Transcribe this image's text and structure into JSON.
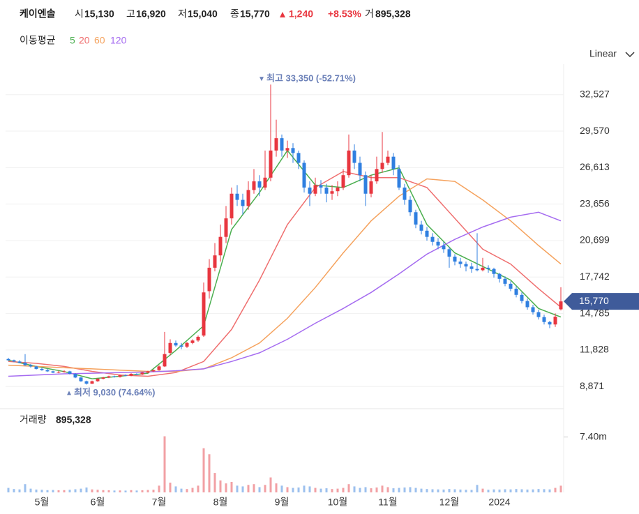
{
  "header": {
    "name": "케이엔솔",
    "open_label": "시",
    "open": "15,130",
    "high_label": "고",
    "high": "16,920",
    "low_label": "저",
    "low": "15,040",
    "close_label": "종",
    "close": "15,770",
    "change": "1,240",
    "change_pct": "+8.53%",
    "volume_label": "거",
    "volume": "895,328"
  },
  "scale_mode": "Linear",
  "chart_data": {
    "type": "candlestick",
    "legend_title": "이동평균",
    "up_color": "#e8363f",
    "down_color": "#2f7fe0",
    "categories": [
      null,
      null,
      null,
      null,
      null,
      null,
      "5월",
      null,
      null,
      null,
      null,
      null,
      null,
      null,
      null,
      null,
      "6월",
      null,
      null,
      null,
      null,
      null,
      null,
      null,
      null,
      null,
      null,
      "7월",
      null,
      null,
      null,
      null,
      null,
      null,
      null,
      null,
      null,
      null,
      "8월",
      null,
      null,
      null,
      null,
      null,
      null,
      null,
      null,
      null,
      null,
      "9월",
      null,
      null,
      null,
      null,
      null,
      null,
      null,
      null,
      null,
      "10월",
      null,
      null,
      null,
      null,
      null,
      null,
      null,
      null,
      "11월",
      null,
      null,
      null,
      null,
      null,
      null,
      null,
      null,
      null,
      null,
      "12월",
      null,
      null,
      null,
      null,
      null,
      null,
      null,
      null,
      "2024",
      null,
      null,
      null,
      null,
      null,
      null,
      null,
      null,
      null,
      null,
      null
    ],
    "open": [
      11100,
      11000,
      10900,
      10800,
      10600,
      10500,
      10300,
      10200,
      10100,
      10000,
      10050,
      10100,
      9900,
      9600,
      9300,
      9100,
      9300,
      9500,
      9600,
      9700,
      9650,
      9800,
      9750,
      9900,
      9850,
      10000,
      10100,
      10200,
      10500,
      11600,
      12400,
      12200,
      12100,
      12400,
      12600,
      13000,
      16600,
      18500,
      19500,
      21000,
      22500,
      24500,
      24000,
      23500,
      24800,
      25500,
      25000,
      25800,
      28000,
      29000,
      28000,
      28200,
      27800,
      27000,
      25000,
      24500,
      25200,
      25000,
      24500,
      24700,
      25000,
      26000,
      28000,
      27000,
      26000,
      24500,
      25500,
      26500,
      27000,
      27500,
      26500,
      25000,
      24000,
      23000,
      22000,
      21500,
      21000,
      20600,
      20300,
      20000,
      19400,
      19000,
      18800,
      18600,
      18400,
      18300,
      18500,
      18400,
      18000,
      17600,
      17200,
      16800,
      16300,
      15800,
      15300,
      14900,
      14500,
      14100,
      13900,
      15130
    ],
    "high": [
      11200,
      11050,
      11000,
      11500,
      10700,
      10550,
      10400,
      10300,
      10150,
      10150,
      10200,
      10150,
      9950,
      9650,
      9350,
      9350,
      9550,
      9650,
      9750,
      9750,
      9850,
      9850,
      9950,
      9950,
      10050,
      10150,
      10250,
      10600,
      13300,
      12700,
      12600,
      12400,
      12500,
      12700,
      13000,
      17300,
      19200,
      20500,
      22000,
      23500,
      25000,
      25200,
      24500,
      25500,
      26500,
      26000,
      28000,
      33350,
      30500,
      29300,
      28800,
      28600,
      28000,
      27200,
      25500,
      25800,
      25600,
      25300,
      25200,
      25500,
      26500,
      29300,
      28500,
      27500,
      26300,
      26000,
      27500,
      29500,
      28000,
      27800,
      26800,
      25300,
      24300,
      23200,
      22300,
      21800,
      21300,
      20900,
      20600,
      20200,
      19600,
      19300,
      19000,
      18900,
      21300,
      19300,
      18700,
      18500,
      18100,
      17800,
      17400,
      17000,
      16500,
      16000,
      15500,
      15100,
      14700,
      14200,
      14800,
      16920
    ],
    "low": [
      10950,
      10850,
      10750,
      10550,
      10400,
      10250,
      10150,
      10050,
      9950,
      9950,
      10000,
      9850,
      9550,
      9250,
      9030,
      9080,
      9250,
      9450,
      9550,
      9600,
      9600,
      9700,
      9700,
      9800,
      9800,
      9950,
      10050,
      10150,
      10450,
      11400,
      12100,
      11900,
      12000,
      12300,
      12500,
      12900,
      16000,
      18200,
      19000,
      20500,
      22000,
      23500,
      22800,
      23200,
      24500,
      24300,
      24800,
      25500,
      27500,
      27500,
      27400,
      27000,
      26500,
      24600,
      23500,
      24300,
      24500,
      23800,
      24000,
      24300,
      24800,
      25800,
      26500,
      25500,
      23500,
      24200,
      25300,
      26200,
      26800,
      26000,
      24800,
      23600,
      22700,
      21700,
      21200,
      20700,
      20300,
      20000,
      19700,
      18500,
      18700,
      18500,
      18200,
      18100,
      18200,
      18200,
      18100,
      17700,
      17300,
      17000,
      16600,
      16100,
      15600,
      15100,
      14700,
      14300,
      13900,
      13600,
      13700,
      15040
    ],
    "close": [
      11000,
      10900,
      10800,
      10600,
      10500,
      10300,
      10200,
      10100,
      10000,
      10050,
      10100,
      9900,
      9600,
      9300,
      9100,
      9300,
      9500,
      9600,
      9700,
      9650,
      9800,
      9750,
      9900,
      9850,
      10000,
      10100,
      10200,
      10500,
      11500,
      12400,
      12200,
      12100,
      12400,
      12600,
      12900,
      16500,
      18500,
      19500,
      21000,
      22500,
      24500,
      24000,
      23500,
      24800,
      25500,
      25000,
      25800,
      28000,
      29000,
      28000,
      28200,
      27800,
      27000,
      25000,
      24500,
      25200,
      25000,
      24500,
      24700,
      25000,
      26000,
      28000,
      27000,
      26000,
      24500,
      25500,
      26500,
      27000,
      27500,
      26500,
      25000,
      24000,
      23000,
      22000,
      21500,
      21000,
      20600,
      20300,
      20000,
      19400,
      19000,
      18800,
      18600,
      18400,
      18300,
      18500,
      18400,
      18000,
      17600,
      17200,
      16800,
      16300,
      15800,
      15300,
      14900,
      14500,
      14100,
      13900,
      14530,
      15770
    ],
    "ylim": [
      7300,
      35000
    ],
    "yticks": [
      {
        "value": 32527,
        "label": "32,527"
      },
      {
        "value": 29570,
        "label": "29,570"
      },
      {
        "value": 26613,
        "label": "26,613"
      },
      {
        "value": 23656,
        "label": "23,656"
      },
      {
        "value": 20699,
        "label": "20,699"
      },
      {
        "value": 17742,
        "label": "17,742"
      },
      {
        "value": 14785,
        "label": "14,785"
      },
      {
        "value": 11828,
        "label": "11,828"
      },
      {
        "value": 8871,
        "label": "8,871"
      }
    ],
    "grid": true,
    "moving_averages": [
      {
        "name": "5",
        "color": "#4caf50",
        "x": [
          0,
          5,
          10,
          15,
          20,
          25,
          30,
          35,
          40,
          45,
          50,
          55,
          60,
          65,
          70,
          75,
          80,
          85,
          90,
          95,
          99
        ],
        "values": [
          11000,
          10500,
          10080,
          9500,
          9700,
          9950,
          11800,
          13800,
          21600,
          24600,
          28000,
          25200,
          25000,
          26000,
          26600,
          22000,
          19700,
          18600,
          17500,
          15200,
          14500
        ]
      },
      {
        "name": "20",
        "color": "#ef6f6f",
        "x": [
          0,
          5,
          10,
          15,
          20,
          25,
          30,
          35,
          40,
          45,
          50,
          55,
          60,
          65,
          70,
          75,
          80,
          85,
          90,
          95,
          99
        ],
        "values": [
          10900,
          10750,
          10500,
          10100,
          9800,
          9700,
          10000,
          10900,
          13500,
          17500,
          22000,
          25000,
          26300,
          25800,
          25800,
          25000,
          22500,
          20000,
          18800,
          16800,
          15300
        ]
      },
      {
        "name": "60",
        "color": "#f5a25d",
        "x": [
          0,
          5,
          10,
          15,
          20,
          25,
          30,
          35,
          40,
          45,
          50,
          55,
          60,
          65,
          70,
          75,
          80,
          85,
          90,
          95,
          99
        ],
        "values": [
          10600,
          10500,
          10400,
          10300,
          10200,
          10100,
          10100,
          10300,
          11200,
          12400,
          14400,
          16900,
          19700,
          22300,
          24300,
          25700,
          25500,
          24000,
          22300,
          20300,
          18800
        ]
      },
      {
        "name": "120",
        "color": "#a56cf0",
        "x": [
          0,
          5,
          10,
          15,
          20,
          25,
          30,
          35,
          40,
          45,
          50,
          55,
          60,
          65,
          70,
          75,
          80,
          85,
          90,
          95,
          99
        ],
        "values": [
          9700,
          9800,
          9900,
          9950,
          10000,
          10050,
          10150,
          10300,
          10900,
          11600,
          12700,
          14000,
          15200,
          16500,
          18000,
          19600,
          20800,
          21800,
          22600,
          23000,
          22300
        ]
      }
    ],
    "annotations": [
      {
        "text": "최고 33,350 (-52.71%)",
        "index": 47,
        "value": 33350
      },
      {
        "text": "최저 9,030 (74.64%)",
        "index": 14,
        "value": 9030
      }
    ],
    "current_price": {
      "value": 15770,
      "label": "15,770"
    },
    "volume": {
      "title": "거래량",
      "value_text": "895,328",
      "values": [
        600000,
        450000,
        400000,
        1100000,
        500000,
        380000,
        350000,
        300000,
        320000,
        280000,
        300000,
        350000,
        420000,
        500000,
        650000,
        400000,
        350000,
        300000,
        280000,
        250000,
        260000,
        240000,
        300000,
        250000,
        280000,
        320000,
        350000,
        900000,
        7500000,
        1300000,
        800000,
        500000,
        450000,
        600000,
        900000,
        5900000,
        5100000,
        2600000,
        1600000,
        1200000,
        1400000,
        900000,
        800000,
        1000000,
        1100000,
        700000,
        1000000,
        2000000,
        1200000,
        900000,
        700000,
        600000,
        650000,
        900000,
        800000,
        600000,
        500000,
        550000,
        450000,
        500000,
        600000,
        1100000,
        800000,
        600000,
        700000,
        550000,
        650000,
        900000,
        700000,
        550000,
        600000,
        650000,
        700000,
        600000,
        500000,
        450000,
        420000,
        400000,
        380000,
        450000,
        420000,
        380000,
        350000,
        330000,
        1000000,
        500000,
        350000,
        400000,
        380000,
        420000,
        400000,
        450000,
        420000,
        380000,
        400000,
        450000,
        430000,
        400000,
        600000,
        895328
      ],
      "ylim": [
        0,
        11000000
      ],
      "yticks": [
        {
          "value": 7400000,
          "label": "7.40m"
        }
      ]
    }
  }
}
